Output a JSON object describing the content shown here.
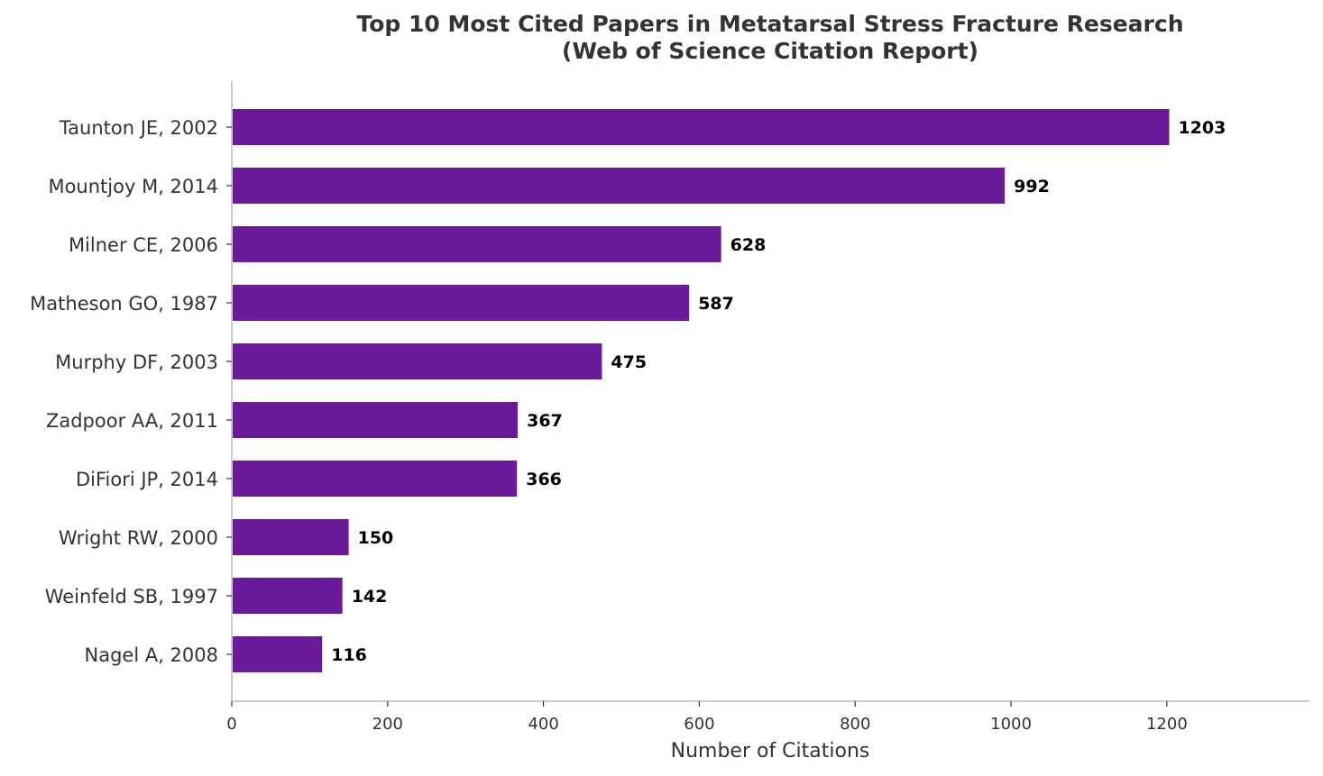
{
  "chart_data": {
    "type": "bar",
    "orientation": "horizontal",
    "title_lines": [
      "Top 10 Most Cited Papers in Metatarsal Stress Fracture Research",
      "(Web of Science Citation Report)"
    ],
    "categories": [
      "Taunton JE, 2002",
      "Mountjoy M, 2014",
      "Milner CE, 2006",
      "Matheson GO, 1987",
      "Murphy DF, 2003",
      "Zadpoor AA, 2011",
      "DiFiori JP, 2014",
      "Wright RW, 2000",
      "Weinfeld SB, 1997",
      "Nagel A, 2008"
    ],
    "values": [
      1203,
      992,
      628,
      587,
      475,
      367,
      366,
      150,
      142,
      116
    ],
    "xlabel": "Number of Citations",
    "ylabel": "",
    "xlim": [
      0,
      1383
    ],
    "xticks": [
      0,
      200,
      400,
      600,
      800,
      1000,
      1200
    ],
    "grid": false,
    "legend": "none",
    "bar_color": "#6a1b9a",
    "axis_color": "#cccccc",
    "text_color": "#333333"
  }
}
